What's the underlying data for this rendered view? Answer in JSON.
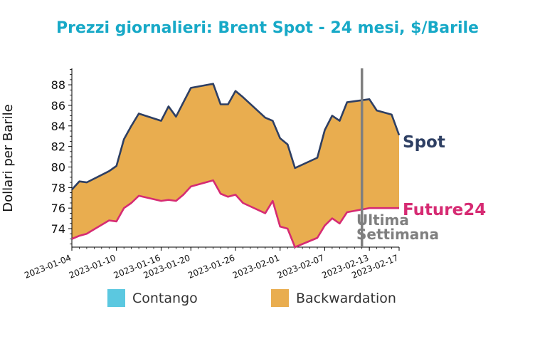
{
  "chart_data": {
    "type": "area",
    "title": "Prezzi giornalieri: Brent Spot - 24 mesi, $/Barile",
    "xlabel": "",
    "ylabel": "Dollari per Barile",
    "ylim": [
      72.2,
      89.6
    ],
    "y_ticks": [
      "74",
      "76",
      "78",
      "80",
      "82",
      "84",
      "86",
      "88"
    ],
    "x_tick_labels": [
      "2023-01-04",
      "2023-01-10",
      "2023-01-16",
      "2023-01-20",
      "2023-01-26",
      "2023-02-01",
      "2023-02-07",
      "2023-02-13",
      "2023-02-17"
    ],
    "x": [
      "2023-01-04",
      "2023-01-05",
      "2023-01-06",
      "2023-01-09",
      "2023-01-10",
      "2023-01-11",
      "2023-01-12",
      "2023-01-13",
      "2023-01-16",
      "2023-01-17",
      "2023-01-18",
      "2023-01-19",
      "2023-01-20",
      "2023-01-23",
      "2023-01-24",
      "2023-01-25",
      "2023-01-26",
      "2023-01-27",
      "2023-01-30",
      "2023-01-31",
      "2023-02-01",
      "2023-02-02",
      "2023-02-03",
      "2023-02-06",
      "2023-02-07",
      "2023-02-08",
      "2023-02-09",
      "2023-02-10",
      "2023-02-13",
      "2023-02-14",
      "2023-02-15",
      "2023-02-16",
      "2023-02-17"
    ],
    "series": [
      {
        "name": "Spot",
        "color": "#2e3f63",
        "values": [
          77.8,
          78.6,
          78.5,
          79.6,
          80.1,
          82.7,
          84.0,
          85.2,
          84.5,
          85.9,
          84.9,
          86.3,
          87.7,
          88.1,
          86.1,
          86.1,
          87.4,
          86.8,
          84.8,
          84.5,
          82.8,
          82.2,
          79.9,
          80.9,
          83.6,
          85.0,
          84.5,
          86.3,
          86.6,
          85.5,
          85.3,
          85.1,
          83.1
        ]
      },
      {
        "name": "Future24",
        "color": "#d62b73",
        "values": [
          73.0,
          73.3,
          73.5,
          74.8,
          74.7,
          76.0,
          76.5,
          77.2,
          76.7,
          76.8,
          76.7,
          77.3,
          78.1,
          78.7,
          77.4,
          77.1,
          77.3,
          76.5,
          75.5,
          76.7,
          74.2,
          74.0,
          72.2,
          73.1,
          74.3,
          75.0,
          74.5,
          75.6,
          76.0,
          76.0,
          76.0,
          76.0,
          76.0
        ]
      }
    ],
    "fill_legend": [
      {
        "label": "Contango",
        "color": "#5bc8e0"
      },
      {
        "label": "Backwardation",
        "color": "#e9ad4f"
      }
    ],
    "annotation": {
      "lines": [
        "Ultima",
        "Settimana"
      ],
      "x": "2023-02-12",
      "color": "#7f7f7f"
    },
    "title_color": "#17a9c7",
    "grid": false
  }
}
